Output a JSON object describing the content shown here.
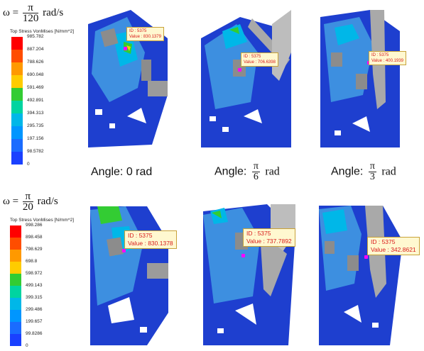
{
  "row1": {
    "omega": {
      "symbol": "ω =",
      "numerator": "π",
      "denominator": "120",
      "unit": "rad/s"
    },
    "legend": {
      "title": "Top Stress VonMises [N/mm^2]",
      "ticks": [
        "985.782",
        "887.204",
        "788.626",
        "690.048",
        "591.469",
        "492.891",
        "394.313",
        "295.735",
        "197.156",
        "98.5782",
        "0"
      ]
    },
    "tiles": [
      {
        "probe_id": "ID : 5375",
        "probe_value": "Value : 830.1379"
      },
      {
        "probe_id": "ID : 5375",
        "probe_value": "Value : 706.6398"
      },
      {
        "probe_id": "ID : 5375",
        "probe_value": "Value : 400.1939"
      }
    ]
  },
  "angles": [
    {
      "prefix": "Angle:",
      "value": "0 rad"
    },
    {
      "prefix": "Angle:",
      "numerator": "π",
      "denominator": "6",
      "unit": "rad"
    },
    {
      "prefix": "Angle:",
      "numerator": "π",
      "denominator": "3",
      "unit": "rad"
    }
  ],
  "row2": {
    "omega": {
      "symbol": "ω =",
      "numerator": "π",
      "denominator": "20",
      "unit": "rad/s"
    },
    "legend": {
      "title": "Top Stress VonMises [N/mm^2]",
      "ticks": [
        "998.286",
        "898.458",
        "798.629",
        "698.8",
        "598.972",
        "499.143",
        "399.315",
        "299.486",
        "199.657",
        "99.8286",
        "0"
      ]
    },
    "tiles": [
      {
        "probe_id": "ID : 5375",
        "probe_value": "Value : 830.1378"
      },
      {
        "probe_id": "ID : 5375",
        "probe_value": "Value : 737.7892"
      },
      {
        "probe_id": "ID : 5375",
        "probe_value": "Value : 342.8621"
      }
    ]
  },
  "colors": {
    "scale": [
      "#ff0000",
      "#ff4d00",
      "#ff9900",
      "#ffcc00",
      "#33cc33",
      "#00d4a0",
      "#00b7e8",
      "#0096ff",
      "#1a6cff",
      "#1a40ff",
      "#0000cc"
    ],
    "mesh_blue": "#1e3fcf",
    "mesh_light": "#3d8fe0",
    "rod_gray": "#a9a9a9"
  }
}
